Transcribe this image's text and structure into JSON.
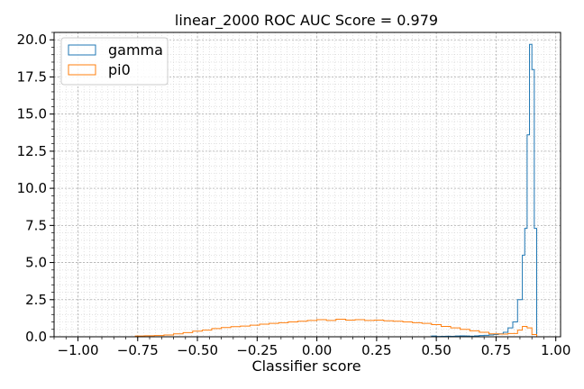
{
  "chart_data": {
    "type": "histogram",
    "title": "linear_2000 ROC AUC Score = 0.979",
    "xlabel": "Classifier score",
    "ylabel": "",
    "xlim": [
      -1.1,
      1.02
    ],
    "ylim": [
      0,
      20.5
    ],
    "grid": true,
    "minor_grid": true,
    "legend_position": "top-left",
    "x_ticks": [
      -1.0,
      -0.75,
      -0.5,
      -0.25,
      0.0,
      0.25,
      0.5,
      0.75,
      1.0
    ],
    "x_tick_labels": [
      "−1.00",
      "−0.75",
      "−0.50",
      "−0.25",
      "0.00",
      "0.25",
      "0.50",
      "0.75",
      "1.00"
    ],
    "y_ticks": [
      0,
      2.5,
      5,
      7.5,
      10,
      12.5,
      15,
      17.5,
      20
    ],
    "y_tick_labels": [
      "0.0",
      "2.5",
      "5.0",
      "7.5",
      "10.0",
      "12.5",
      "15.0",
      "17.5",
      "20.0"
    ],
    "series": [
      {
        "name": "gamma",
        "color": "#1f77b4",
        "bin_edges": [
          0.48,
          0.5,
          0.52,
          0.54,
          0.56,
          0.58,
          0.6,
          0.62,
          0.64,
          0.66,
          0.68,
          0.7,
          0.72,
          0.74,
          0.76,
          0.78,
          0.8,
          0.82,
          0.84,
          0.86,
          0.87,
          0.88,
          0.89,
          0.9,
          0.91,
          0.92,
          0.93
        ],
        "values": [
          0.05,
          0.02,
          0.03,
          0.04,
          0.03,
          0.05,
          0.06,
          0.05,
          0.04,
          0.06,
          0.08,
          0.1,
          0.12,
          0.15,
          0.2,
          0.3,
          0.6,
          1.0,
          2.5,
          5.5,
          7.3,
          13.6,
          19.7,
          18.0,
          7.3,
          0.0
        ]
      },
      {
        "name": "pi0",
        "color": "#ff7f0e",
        "bin_edges": [
          -0.76,
          -0.72,
          -0.68,
          -0.64,
          -0.6,
          -0.56,
          -0.52,
          -0.48,
          -0.44,
          -0.4,
          -0.36,
          -0.32,
          -0.28,
          -0.24,
          -0.2,
          -0.16,
          -0.12,
          -0.08,
          -0.04,
          0.0,
          0.04,
          0.08,
          0.12,
          0.16,
          0.2,
          0.24,
          0.28,
          0.32,
          0.36,
          0.4,
          0.44,
          0.48,
          0.52,
          0.56,
          0.6,
          0.64,
          0.68,
          0.72,
          0.76,
          0.8,
          0.84,
          0.86,
          0.88,
          0.9,
          0.92
        ],
        "values": [
          0.05,
          0.07,
          0.08,
          0.12,
          0.2,
          0.28,
          0.38,
          0.45,
          0.55,
          0.62,
          0.68,
          0.72,
          0.78,
          0.85,
          0.9,
          0.95,
          1.0,
          1.05,
          1.1,
          1.15,
          1.1,
          1.18,
          1.12,
          1.15,
          1.1,
          1.12,
          1.08,
          1.05,
          1.0,
          0.95,
          0.9,
          0.82,
          0.7,
          0.6,
          0.5,
          0.4,
          0.3,
          0.2,
          0.18,
          0.22,
          0.45,
          0.7,
          0.6,
          0.15
        ]
      }
    ]
  }
}
